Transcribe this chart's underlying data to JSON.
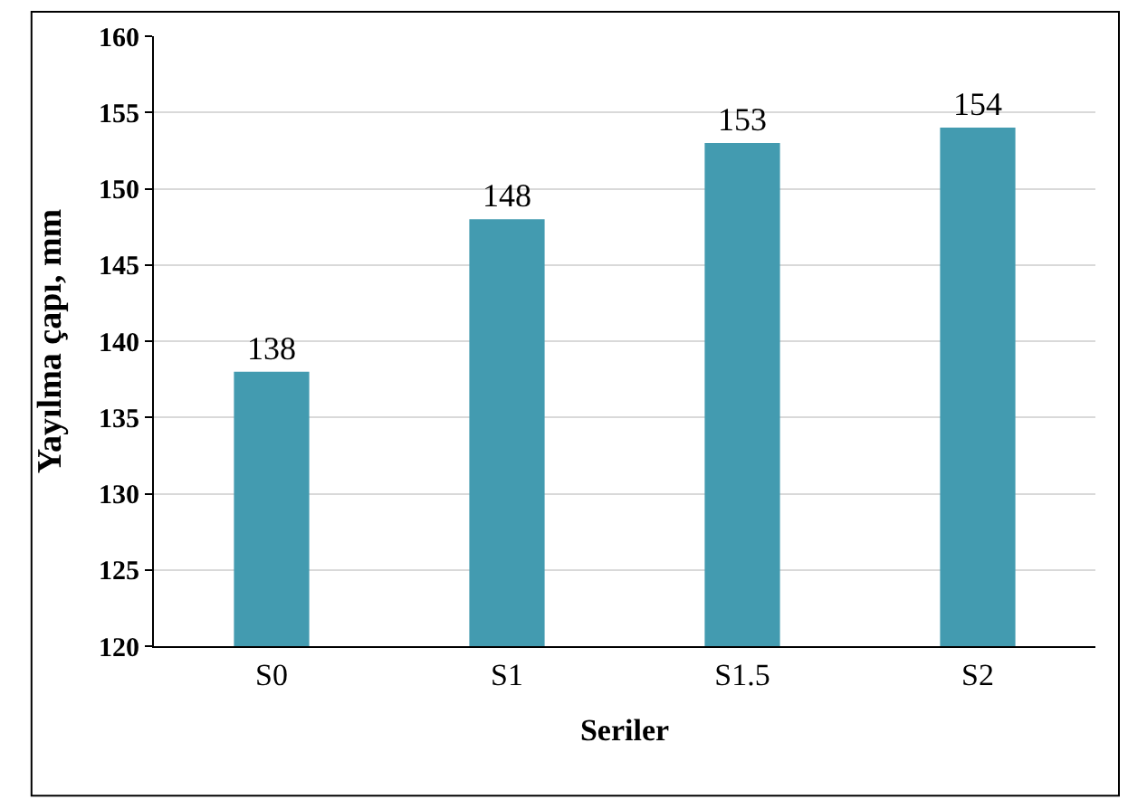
{
  "chart_data": {
    "type": "bar",
    "xlabel": "Seriler",
    "ylabel": "Yayılma çapı, mm",
    "categories": [
      "S0",
      "S1",
      "S1.5",
      "S2"
    ],
    "values": [
      138,
      148,
      153,
      154
    ],
    "color": "#439bb0",
    "ylim": [
      120,
      160
    ],
    "yticks": [
      120,
      125,
      130,
      135,
      140,
      145,
      150,
      155,
      160
    ],
    "grid": "y",
    "data_labels": true
  }
}
